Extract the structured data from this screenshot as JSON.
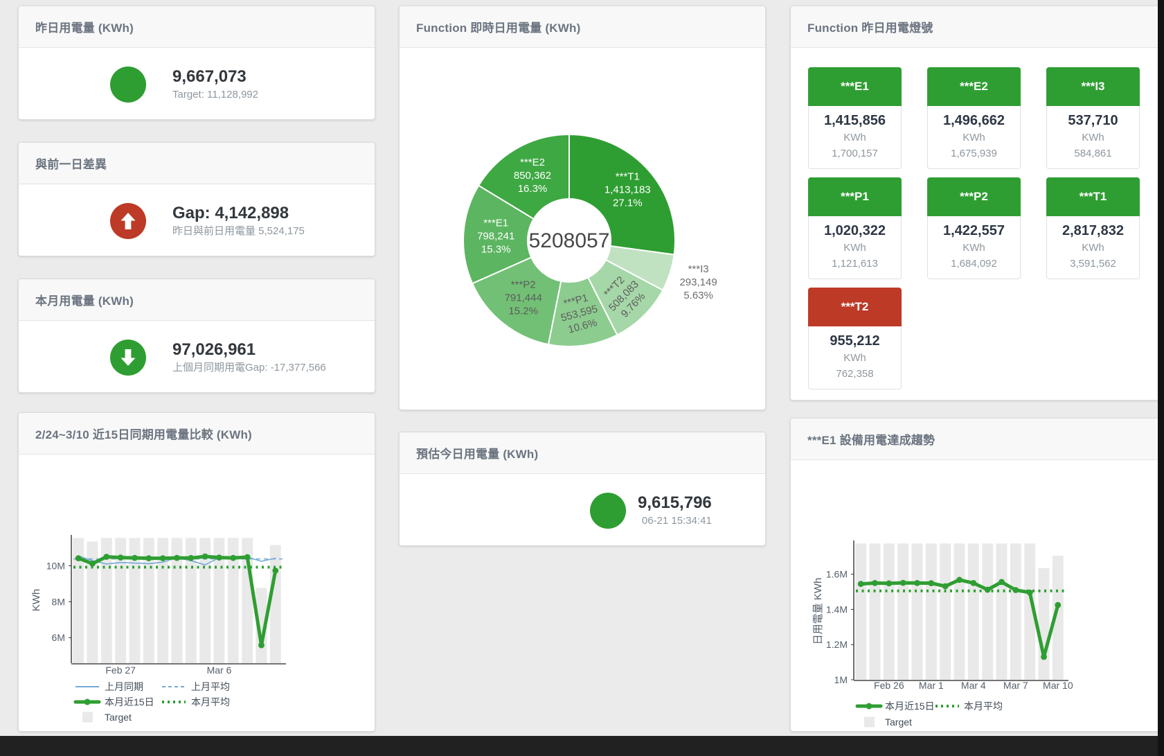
{
  "colors": {
    "green": "#2f9e32",
    "red": "#bd3a27",
    "blue": "#74a9d6",
    "bar_gray": "#e9e9e9",
    "page_bg": "#ebebeb"
  },
  "panels": {
    "yesterday": {
      "title": "昨日用電量 (KWh)",
      "value": "9,667,073",
      "subtitle": "Target: 11,128,992"
    },
    "day_gap": {
      "title": "與前一日差異",
      "value": "Gap: 4,142,898",
      "subtitle": "昨日與前日用電量 5,524,175"
    },
    "month": {
      "title": "本月用電量 (KWh)",
      "value": "97,026,961",
      "subtitle": "上個月同期用電Gap: -17,377,566"
    },
    "estimate": {
      "title": "預估今日用電量 (KWh)",
      "value": "9,615,796",
      "subtitle": "06-21 15:34:41"
    },
    "donut": {
      "title": "Function 即時日用電量 (KWh)"
    },
    "lights": {
      "title": "Function 昨日用電燈號",
      "unit_label": "KWh",
      "tiles": [
        {
          "label": "***E1",
          "value": "1,415,856",
          "target": "1,700,157",
          "status": "green"
        },
        {
          "label": "***E2",
          "value": "1,496,662",
          "target": "1,675,939",
          "status": "green"
        },
        {
          "label": "***I3",
          "value": "537,710",
          "target": "584,861",
          "status": "green"
        },
        {
          "label": "***P1",
          "value": "1,020,322",
          "target": "1,121,613",
          "status": "green"
        },
        {
          "label": "***P2",
          "value": "1,422,557",
          "target": "1,684,092",
          "status": "green"
        },
        {
          "label": "***T1",
          "value": "2,817,832",
          "target": "3,591,562",
          "status": "green"
        },
        {
          "label": "***T2",
          "value": "955,212",
          "target": "762,358",
          "status": "red"
        }
      ]
    },
    "compare": {
      "title": "2/24~3/10 近15日同期用電量比較 (KWh)"
    },
    "trend": {
      "title": "***E1 設備用電達成趨勢"
    }
  },
  "chart_data": [
    {
      "id": "donut",
      "type": "pie",
      "title": "Function 即時日用電量 (KWh)",
      "center_total": "5208057",
      "slices": [
        {
          "name": "***T1",
          "value": 1413183,
          "display": "1,413,183",
          "pct": "27.1%",
          "color": "#2f9e32",
          "label_color": "#ffffff"
        },
        {
          "name": "***I3",
          "value": 293149,
          "display": "293,149",
          "pct": "5.63%",
          "color": "#c0e2c1",
          "label_color": "#6d6d6d"
        },
        {
          "name": "***T2",
          "value": 508083,
          "display": "508,083",
          "pct": "9.76%",
          "color": "#a6d7a8",
          "label_color": "#5c5c5c"
        },
        {
          "name": "***P1",
          "value": 553595,
          "display": "553,595",
          "pct": "10.6%",
          "color": "#8dcc8f",
          "label_color": "#5c5c5c"
        },
        {
          "name": "***P2",
          "value": 791444,
          "display": "791,444",
          "pct": "15.2%",
          "color": "#72c075",
          "label_color": "#5c5c5c"
        },
        {
          "name": "***E1",
          "value": 798241,
          "display": "798,241",
          "pct": "15.3%",
          "color": "#5cb560",
          "label_color": "#ffffff"
        },
        {
          "name": "***E2",
          "value": 850362,
          "display": "850,362",
          "pct": "16.3%",
          "color": "#3ea842",
          "label_color": "#ffffff"
        }
      ]
    },
    {
      "id": "compare",
      "type": "line",
      "title": "2/24~3/10 近15日同期用電量比較 (KWh)",
      "ylabel": "KWh",
      "values_unit": "millions of KWh",
      "ylim": [
        4.58,
        11.6
      ],
      "yticks": [
        {
          "value": 6,
          "label": "6M"
        },
        {
          "value": 8,
          "label": "8M"
        },
        {
          "value": 10,
          "label": "10M"
        }
      ],
      "categories": [
        "Feb 24",
        "Feb 25",
        "Feb 26",
        "Feb 27",
        "Feb 28",
        "Mar 1",
        "Mar 2",
        "Mar 3",
        "Mar 4",
        "Mar 5",
        "Mar 6",
        "Mar 7",
        "Mar 8",
        "Mar 9",
        "Mar 10"
      ],
      "xticks": [
        {
          "index": 3,
          "label": "Feb 27"
        },
        {
          "index": 10,
          "label": "Mar 6"
        }
      ],
      "target_bars": {
        "name": "Target",
        "values": [
          11.55,
          11.35,
          11.55,
          11.55,
          11.55,
          11.55,
          11.55,
          11.55,
          11.55,
          11.55,
          11.55,
          11.55,
          11.55,
          8.77,
          11.15
        ]
      },
      "series": [
        {
          "name": "上月同期",
          "style": "solid",
          "color": "#74a9d6",
          "values": [
            10.55,
            10.28,
            10.1,
            10.18,
            10.15,
            10.12,
            10.2,
            10.45,
            10.28,
            10.05,
            10.45,
            10.42,
            10.48,
            10.25,
            10.42
          ]
        },
        {
          "name": "上月平均",
          "style": "dashed",
          "color": "#74a9d6",
          "avg": 10.38
        },
        {
          "name": "本月近15日",
          "style": "thick",
          "color": "#2f9e32",
          "values": [
            10.42,
            10.12,
            10.5,
            10.46,
            10.44,
            10.42,
            10.42,
            10.44,
            10.43,
            10.52,
            10.46,
            10.44,
            10.48,
            5.58,
            9.73
          ]
        },
        {
          "name": "本月平均",
          "style": "dotted",
          "color": "#2f9e32",
          "avg": 9.92
        }
      ],
      "legend_position": "bottom"
    },
    {
      "id": "trend",
      "type": "line",
      "title": "***E1 設備用電達成趨勢",
      "ylabel": "日用電量 KWh",
      "values_unit": "millions of KWh",
      "ylim": [
        1.0,
        1.78
      ],
      "yticks": [
        {
          "value": 1,
          "label": "1M"
        },
        {
          "value": 1.2,
          "label": "1.2M"
        },
        {
          "value": 1.4,
          "label": "1.4M"
        },
        {
          "value": 1.6,
          "label": "1.6M"
        }
      ],
      "categories": [
        "Feb 24",
        "Feb 25",
        "Feb 26",
        "Feb 27",
        "Feb 28",
        "Mar 1",
        "Mar 2",
        "Mar 3",
        "Mar 4",
        "Mar 5",
        "Mar 6",
        "Mar 7",
        "Mar 8",
        "Mar 9",
        "Mar 10"
      ],
      "xticks": [
        {
          "index": 2,
          "label": "Feb 26"
        },
        {
          "index": 5,
          "label": "Mar 1"
        },
        {
          "index": 8,
          "label": "Mar 4"
        },
        {
          "index": 11,
          "label": "Mar 7"
        },
        {
          "index": 14,
          "label": "Mar 10"
        }
      ],
      "target_bars": {
        "name": "Target",
        "values": [
          1.775,
          1.775,
          1.775,
          1.775,
          1.775,
          1.775,
          1.775,
          1.775,
          1.775,
          1.775,
          1.775,
          1.775,
          1.775,
          1.635,
          1.705
        ]
      },
      "series": [
        {
          "name": "本月近15日",
          "style": "thick",
          "color": "#2f9e32",
          "values": [
            1.545,
            1.55,
            1.548,
            1.551,
            1.55,
            1.549,
            1.532,
            1.568,
            1.55,
            1.512,
            1.556,
            1.51,
            1.496,
            1.13,
            1.425
          ]
        },
        {
          "name": "本月平均",
          "style": "dotted",
          "color": "#2f9e32",
          "avg": 1.505
        }
      ],
      "legend_position": "bottom"
    }
  ]
}
